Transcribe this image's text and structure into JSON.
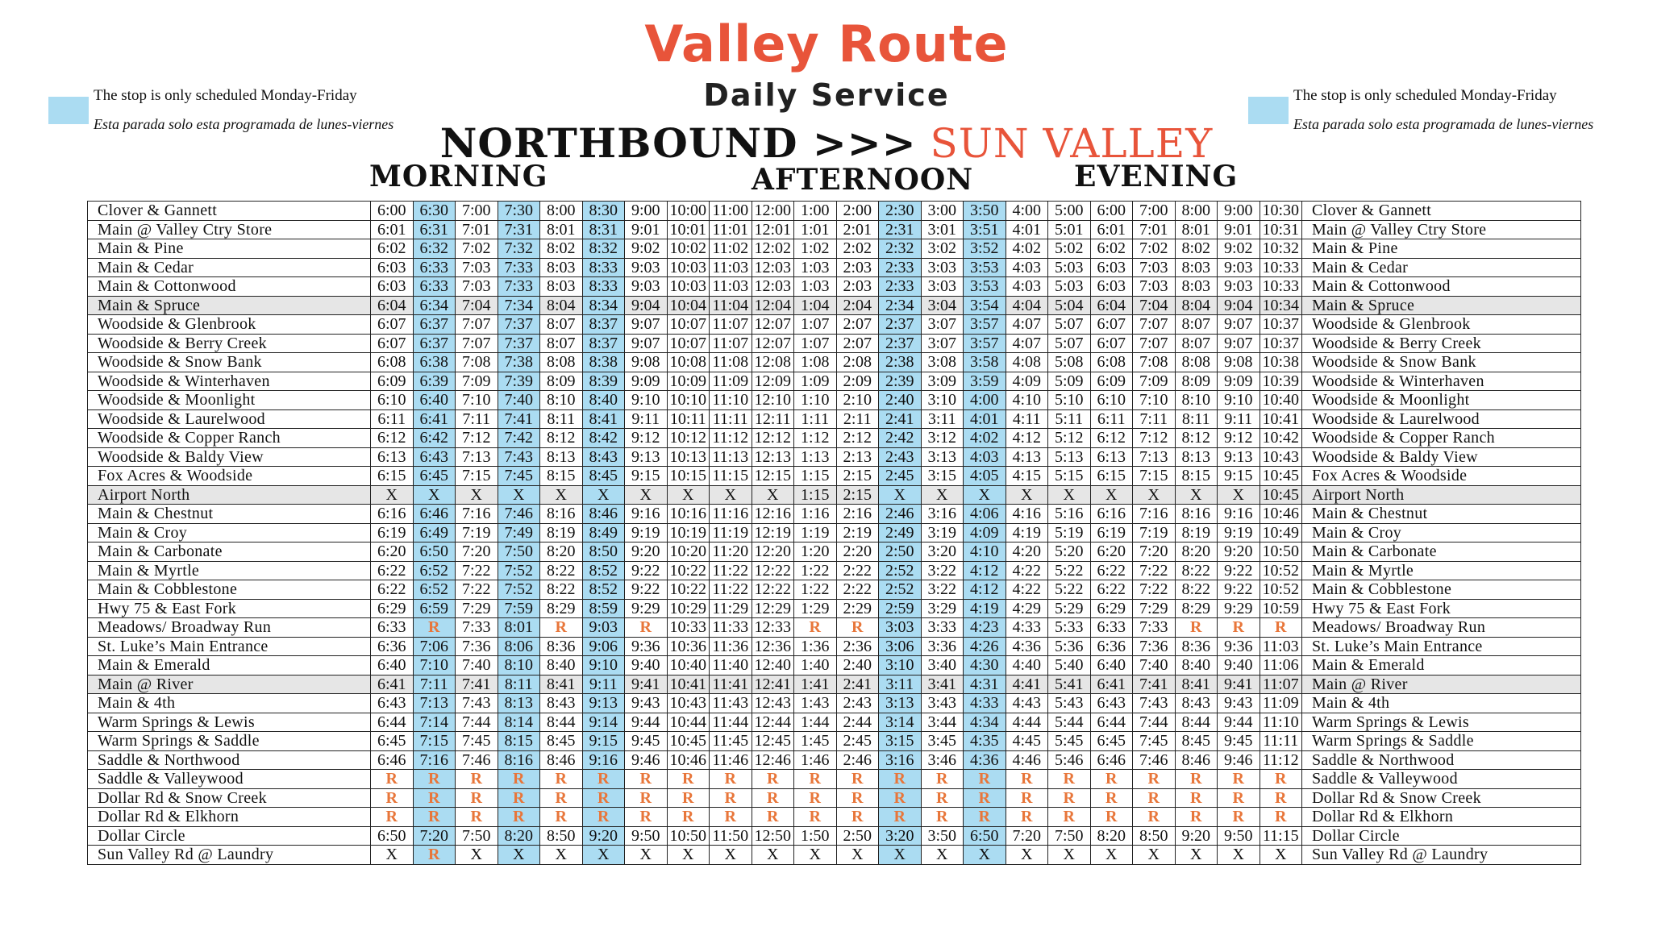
{
  "title": "Valley Route",
  "subtitle": "Daily Service",
  "direction": {
    "label": "NORTHBOUND >>>",
    "destination": "SUN VALLEY"
  },
  "legend": {
    "en": "The stop is only scheduled Monday-Friday",
    "es": "Esta parada solo esta programada de lunes-viernes",
    "color": "#abdcf2"
  },
  "periods": {
    "morning": "MORNING",
    "afternoon": "AFTERNOON",
    "evening": "EVENING"
  },
  "accent_color": "#e8543a",
  "request_color": "#e8763a",
  "weekday_only_columns": [
    1,
    3,
    5,
    12,
    14
  ],
  "shaded_rows": [
    5,
    15,
    25
  ],
  "stops": [
    {
      "name": "Clover & Gannett",
      "times": [
        "6:00",
        "6:30",
        "7:00",
        "7:30",
        "8:00",
        "8:30",
        "9:00",
        "10:00",
        "11:00",
        "12:00",
        "1:00",
        "2:00",
        "2:30",
        "3:00",
        "3:50",
        "4:00",
        "5:00",
        "6:00",
        "7:00",
        "8:00",
        "9:00",
        "10:30"
      ]
    },
    {
      "name": "Main @ Valley Ctry Store",
      "times": [
        "6:01",
        "6:31",
        "7:01",
        "7:31",
        "8:01",
        "8:31",
        "9:01",
        "10:01",
        "11:01",
        "12:01",
        "1:01",
        "2:01",
        "2:31",
        "3:01",
        "3:51",
        "4:01",
        "5:01",
        "6:01",
        "7:01",
        "8:01",
        "9:01",
        "10:31"
      ]
    },
    {
      "name": "Main & Pine",
      "times": [
        "6:02",
        "6:32",
        "7:02",
        "7:32",
        "8:02",
        "8:32",
        "9:02",
        "10:02",
        "11:02",
        "12:02",
        "1:02",
        "2:02",
        "2:32",
        "3:02",
        "3:52",
        "4:02",
        "5:02",
        "6:02",
        "7:02",
        "8:02",
        "9:02",
        "10:32"
      ]
    },
    {
      "name": "Main & Cedar",
      "times": [
        "6:03",
        "6:33",
        "7:03",
        "7:33",
        "8:03",
        "8:33",
        "9:03",
        "10:03",
        "11:03",
        "12:03",
        "1:03",
        "2:03",
        "2:33",
        "3:03",
        "3:53",
        "4:03",
        "5:03",
        "6:03",
        "7:03",
        "8:03",
        "9:03",
        "10:33"
      ]
    },
    {
      "name": "Main & Cottonwood",
      "times": [
        "6:03",
        "6:33",
        "7:03",
        "7:33",
        "8:03",
        "8:33",
        "9:03",
        "10:03",
        "11:03",
        "12:03",
        "1:03",
        "2:03",
        "2:33",
        "3:03",
        "3:53",
        "4:03",
        "5:03",
        "6:03",
        "7:03",
        "8:03",
        "9:03",
        "10:33"
      ]
    },
    {
      "name": "Main & Spruce",
      "times": [
        "6:04",
        "6:34",
        "7:04",
        "7:34",
        "8:04",
        "8:34",
        "9:04",
        "10:04",
        "11:04",
        "12:04",
        "1:04",
        "2:04",
        "2:34",
        "3:04",
        "3:54",
        "4:04",
        "5:04",
        "6:04",
        "7:04",
        "8:04",
        "9:04",
        "10:34"
      ]
    },
    {
      "name": "Woodside & Glenbrook",
      "times": [
        "6:07",
        "6:37",
        "7:07",
        "7:37",
        "8:07",
        "8:37",
        "9:07",
        "10:07",
        "11:07",
        "12:07",
        "1:07",
        "2:07",
        "2:37",
        "3:07",
        "3:57",
        "4:07",
        "5:07",
        "6:07",
        "7:07",
        "8:07",
        "9:07",
        "10:37"
      ]
    },
    {
      "name": "Woodside & Berry Creek",
      "times": [
        "6:07",
        "6:37",
        "7:07",
        "7:37",
        "8:07",
        "8:37",
        "9:07",
        "10:07",
        "11:07",
        "12:07",
        "1:07",
        "2:07",
        "2:37",
        "3:07",
        "3:57",
        "4:07",
        "5:07",
        "6:07",
        "7:07",
        "8:07",
        "9:07",
        "10:37"
      ]
    },
    {
      "name": "Woodside & Snow Bank",
      "times": [
        "6:08",
        "6:38",
        "7:08",
        "7:38",
        "8:08",
        "8:38",
        "9:08",
        "10:08",
        "11:08",
        "12:08",
        "1:08",
        "2:08",
        "2:38",
        "3:08",
        "3:58",
        "4:08",
        "5:08",
        "6:08",
        "7:08",
        "8:08",
        "9:08",
        "10:38"
      ]
    },
    {
      "name": "Woodside & Winterhaven",
      "times": [
        "6:09",
        "6:39",
        "7:09",
        "7:39",
        "8:09",
        "8:39",
        "9:09",
        "10:09",
        "11:09",
        "12:09",
        "1:09",
        "2:09",
        "2:39",
        "3:09",
        "3:59",
        "4:09",
        "5:09",
        "6:09",
        "7:09",
        "8:09",
        "9:09",
        "10:39"
      ]
    },
    {
      "name": "Woodside & Moonlight",
      "times": [
        "6:10",
        "6:40",
        "7:10",
        "7:40",
        "8:10",
        "8:40",
        "9:10",
        "10:10",
        "11:10",
        "12:10",
        "1:10",
        "2:10",
        "2:40",
        "3:10",
        "4:00",
        "4:10",
        "5:10",
        "6:10",
        "7:10",
        "8:10",
        "9:10",
        "10:40"
      ]
    },
    {
      "name": "Woodside & Laurelwood",
      "times": [
        "6:11",
        "6:41",
        "7:11",
        "7:41",
        "8:11",
        "8:41",
        "9:11",
        "10:11",
        "11:11",
        "12:11",
        "1:11",
        "2:11",
        "2:41",
        "3:11",
        "4:01",
        "4:11",
        "5:11",
        "6:11",
        "7:11",
        "8:11",
        "9:11",
        "10:41"
      ]
    },
    {
      "name": "Woodside & Copper Ranch",
      "times": [
        "6:12",
        "6:42",
        "7:12",
        "7:42",
        "8:12",
        "8:42",
        "9:12",
        "10:12",
        "11:12",
        "12:12",
        "1:12",
        "2:12",
        "2:42",
        "3:12",
        "4:02",
        "4:12",
        "5:12",
        "6:12",
        "7:12",
        "8:12",
        "9:12",
        "10:42"
      ]
    },
    {
      "name": "Woodside & Baldy View",
      "times": [
        "6:13",
        "6:43",
        "7:13",
        "7:43",
        "8:13",
        "8:43",
        "9:13",
        "10:13",
        "11:13",
        "12:13",
        "1:13",
        "2:13",
        "2:43",
        "3:13",
        "4:03",
        "4:13",
        "5:13",
        "6:13",
        "7:13",
        "8:13",
        "9:13",
        "10:43"
      ]
    },
    {
      "name": "Fox Acres & Woodside",
      "times": [
        "6:15",
        "6:45",
        "7:15",
        "7:45",
        "8:15",
        "8:45",
        "9:15",
        "10:15",
        "11:15",
        "12:15",
        "1:15",
        "2:15",
        "2:45",
        "3:15",
        "4:05",
        "4:15",
        "5:15",
        "6:15",
        "7:15",
        "8:15",
        "9:15",
        "10:45"
      ]
    },
    {
      "name": "Airport North",
      "times": [
        "X",
        "X",
        "X",
        "X",
        "X",
        "X",
        "X",
        "X",
        "X",
        "X",
        "1:15",
        "2:15",
        "X",
        "X",
        "X",
        "X",
        "X",
        "X",
        "X",
        "X",
        "X",
        "10:45"
      ]
    },
    {
      "name": "Main & Chestnut",
      "times": [
        "6:16",
        "6:46",
        "7:16",
        "7:46",
        "8:16",
        "8:46",
        "9:16",
        "10:16",
        "11:16",
        "12:16",
        "1:16",
        "2:16",
        "2:46",
        "3:16",
        "4:06",
        "4:16",
        "5:16",
        "6:16",
        "7:16",
        "8:16",
        "9:16",
        "10:46"
      ]
    },
    {
      "name": "Main & Croy",
      "times": [
        "6:19",
        "6:49",
        "7:19",
        "7:49",
        "8:19",
        "8:49",
        "9:19",
        "10:19",
        "11:19",
        "12:19",
        "1:19",
        "2:19",
        "2:49",
        "3:19",
        "4:09",
        "4:19",
        "5:19",
        "6:19",
        "7:19",
        "8:19",
        "9:19",
        "10:49"
      ]
    },
    {
      "name": "Main & Carbonate",
      "times": [
        "6:20",
        "6:50",
        "7:20",
        "7:50",
        "8:20",
        "8:50",
        "9:20",
        "10:20",
        "11:20",
        "12:20",
        "1:20",
        "2:20",
        "2:50",
        "3:20",
        "4:10",
        "4:20",
        "5:20",
        "6:20",
        "7:20",
        "8:20",
        "9:20",
        "10:50"
      ]
    },
    {
      "name": "Main & Myrtle",
      "times": [
        "6:22",
        "6:52",
        "7:22",
        "7:52",
        "8:22",
        "8:52",
        "9:22",
        "10:22",
        "11:22",
        "12:22",
        "1:22",
        "2:22",
        "2:52",
        "3:22",
        "4:12",
        "4:22",
        "5:22",
        "6:22",
        "7:22",
        "8:22",
        "9:22",
        "10:52"
      ]
    },
    {
      "name": "Main & Cobblestone",
      "times": [
        "6:22",
        "6:52",
        "7:22",
        "7:52",
        "8:22",
        "8:52",
        "9:22",
        "10:22",
        "11:22",
        "12:22",
        "1:22",
        "2:22",
        "2:52",
        "3:22",
        "4:12",
        "4:22",
        "5:22",
        "6:22",
        "7:22",
        "8:22",
        "9:22",
        "10:52"
      ]
    },
    {
      "name": "Hwy 75 & East Fork",
      "times": [
        "6:29",
        "6:59",
        "7:29",
        "7:59",
        "8:29",
        "8:59",
        "9:29",
        "10:29",
        "11:29",
        "12:29",
        "1:29",
        "2:29",
        "2:59",
        "3:29",
        "4:19",
        "4:29",
        "5:29",
        "6:29",
        "7:29",
        "8:29",
        "9:29",
        "10:59"
      ]
    },
    {
      "name": "Meadows/ Broadway Run",
      "times": [
        "6:33",
        "R",
        "7:33",
        "8:01",
        "R",
        "9:03",
        "R",
        "10:33",
        "11:33",
        "12:33",
        "R",
        "R",
        "3:03",
        "3:33",
        "4:23",
        "4:33",
        "5:33",
        "6:33",
        "7:33",
        "R",
        "R",
        "R"
      ]
    },
    {
      "name": "St. Luke’s Main Entrance",
      "times": [
        "6:36",
        "7:06",
        "7:36",
        "8:06",
        "8:36",
        "9:06",
        "9:36",
        "10:36",
        "11:36",
        "12:36",
        "1:36",
        "2:36",
        "3:06",
        "3:36",
        "4:26",
        "4:36",
        "5:36",
        "6:36",
        "7:36",
        "8:36",
        "9:36",
        "11:03"
      ]
    },
    {
      "name": "Main & Emerald",
      "times": [
        "6:40",
        "7:10",
        "7:40",
        "8:10",
        "8:40",
        "9:10",
        "9:40",
        "10:40",
        "11:40",
        "12:40",
        "1:40",
        "2:40",
        "3:10",
        "3:40",
        "4:30",
        "4:40",
        "5:40",
        "6:40",
        "7:40",
        "8:40",
        "9:40",
        "11:06"
      ]
    },
    {
      "name": "Main @ River",
      "times": [
        "6:41",
        "7:11",
        "7:41",
        "8:11",
        "8:41",
        "9:11",
        "9:41",
        "10:41",
        "11:41",
        "12:41",
        "1:41",
        "2:41",
        "3:11",
        "3:41",
        "4:31",
        "4:41",
        "5:41",
        "6:41",
        "7:41",
        "8:41",
        "9:41",
        "11:07"
      ]
    },
    {
      "name": "Main & 4th",
      "times": [
        "6:43",
        "7:13",
        "7:43",
        "8:13",
        "8:43",
        "9:13",
        "9:43",
        "10:43",
        "11:43",
        "12:43",
        "1:43",
        "2:43",
        "3:13",
        "3:43",
        "4:33",
        "4:43",
        "5:43",
        "6:43",
        "7:43",
        "8:43",
        "9:43",
        "11:09"
      ]
    },
    {
      "name": "Warm Springs & Lewis",
      "times": [
        "6:44",
        "7:14",
        "7:44",
        "8:14",
        "8:44",
        "9:14",
        "9:44",
        "10:44",
        "11:44",
        "12:44",
        "1:44",
        "2:44",
        "3:14",
        "3:44",
        "4:34",
        "4:44",
        "5:44",
        "6:44",
        "7:44",
        "8:44",
        "9:44",
        "11:10"
      ]
    },
    {
      "name": "Warm Springs & Saddle",
      "times": [
        "6:45",
        "7:15",
        "7:45",
        "8:15",
        "8:45",
        "9:15",
        "9:45",
        "10:45",
        "11:45",
        "12:45",
        "1:45",
        "2:45",
        "3:15",
        "3:45",
        "4:35",
        "4:45",
        "5:45",
        "6:45",
        "7:45",
        "8:45",
        "9:45",
        "11:11"
      ]
    },
    {
      "name": "Saddle & Northwood",
      "times": [
        "6:46",
        "7:16",
        "7:46",
        "8:16",
        "8:46",
        "9:16",
        "9:46",
        "10:46",
        "11:46",
        "12:46",
        "1:46",
        "2:46",
        "3:16",
        "3:46",
        "4:36",
        "4:46",
        "5:46",
        "6:46",
        "7:46",
        "8:46",
        "9:46",
        "11:12"
      ]
    },
    {
      "name": "Saddle & Valleywood",
      "times": [
        "R",
        "R",
        "R",
        "R",
        "R",
        "R",
        "R",
        "R",
        "R",
        "R",
        "R",
        "R",
        "R",
        "R",
        "R",
        "R",
        "R",
        "R",
        "R",
        "R",
        "R",
        "R"
      ]
    },
    {
      "name": "Dollar Rd & Snow Creek",
      "times": [
        "R",
        "R",
        "R",
        "R",
        "R",
        "R",
        "R",
        "R",
        "R",
        "R",
        "R",
        "R",
        "R",
        "R",
        "R",
        "R",
        "R",
        "R",
        "R",
        "R",
        "R",
        "R"
      ]
    },
    {
      "name": "Dollar Rd & Elkhorn",
      "times": [
        "R",
        "R",
        "R",
        "R",
        "R",
        "R",
        "R",
        "R",
        "R",
        "R",
        "R",
        "R",
        "R",
        "R",
        "R",
        "R",
        "R",
        "R",
        "R",
        "R",
        "R",
        "R"
      ]
    },
    {
      "name": "Dollar Circle",
      "times": [
        "6:50",
        "7:20",
        "7:50",
        "8:20",
        "8:50",
        "9:20",
        "9:50",
        "10:50",
        "11:50",
        "12:50",
        "1:50",
        "2:50",
        "3:20",
        "3:50",
        "6:50",
        "7:20",
        "7:50",
        "8:20",
        "8:50",
        "9:20",
        "9:50",
        "11:15"
      ]
    },
    {
      "name": "Sun Valley Rd @ Laundry",
      "times": [
        "X",
        "R",
        "X",
        "X",
        "X",
        "X",
        "X",
        "X",
        "X",
        "X",
        "X",
        "X",
        "X",
        "X",
        "X",
        "X",
        "X",
        "X",
        "X",
        "X",
        "X",
        "X"
      ]
    }
  ]
}
